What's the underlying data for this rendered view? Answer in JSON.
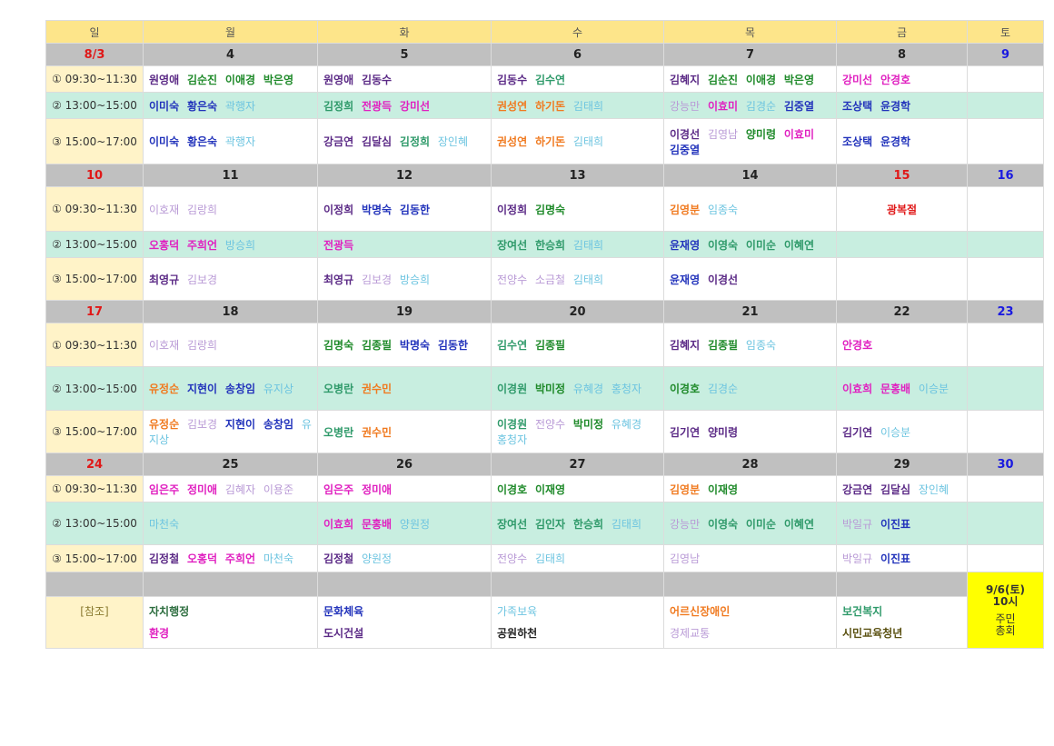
{
  "colors": {
    "purple": "#5b2a86",
    "green": "#1f8a2a",
    "blue": "#2233bb",
    "magenta": "#e020c0",
    "orange": "#f07a20",
    "lightblue": "#6cc4e0",
    "lavender": "#b99ad6",
    "teal": "#2f9a6a",
    "darkgreen": "#2e6e40",
    "black": "#222222",
    "olive": "#5a5010",
    "sunday_red": "#e01818",
    "saturday_blue": "#1a1ae0"
  },
  "weekdays": [
    "일",
    "월",
    "화",
    "수",
    "목",
    "금",
    "토"
  ],
  "slots": [
    "① 09:30~11:30",
    "② 13:00~15:00",
    "③ 15:00~17:00"
  ],
  "weeks": [
    {
      "dates": [
        "8/3",
        "4",
        "5",
        "6",
        "7",
        "8",
        "9"
      ],
      "rows": [
        [
          [
            [
              "원영애",
              "purple"
            ],
            [
              "김순진",
              "green"
            ],
            [
              "이애경",
              "green"
            ],
            [
              "박은영",
              "green"
            ]
          ],
          [
            [
              "원영애",
              "purple"
            ],
            [
              "김동수",
              "purple"
            ]
          ],
          [
            [
              "김동수",
              "purple"
            ],
            [
              "김수연",
              "teal"
            ]
          ],
          [
            [
              "김혜지",
              "purple"
            ],
            [
              "김순진",
              "green"
            ],
            [
              "이애경",
              "green"
            ],
            [
              "박은영",
              "green"
            ]
          ],
          [
            [
              "강미선",
              "magenta"
            ],
            [
              "안경호",
              "magenta"
            ]
          ],
          []
        ],
        [
          [
            [
              "이미숙",
              "blue"
            ],
            [
              "황은숙",
              "blue"
            ],
            [
              "곽행자",
              "lightblue"
            ]
          ],
          [
            [
              "김정희",
              "teal"
            ],
            [
              "전광득",
              "magenta"
            ],
            [
              "강미선",
              "magenta"
            ]
          ],
          [
            [
              "권성연",
              "orange"
            ],
            [
              "하기돈",
              "orange"
            ],
            [
              "김태희",
              "lightblue"
            ]
          ],
          [
            [
              "강능만",
              "lavender"
            ],
            [
              "이효미",
              "magenta"
            ],
            [
              "김경순",
              "lightblue"
            ],
            [
              "김중열",
              "blue"
            ]
          ],
          [
            [
              "조상택",
              "blue"
            ],
            [
              "윤경학",
              "blue"
            ]
          ],
          []
        ],
        [
          [
            [
              "이미숙",
              "blue"
            ],
            [
              "황은숙",
              "blue"
            ],
            [
              "곽행자",
              "lightblue"
            ]
          ],
          [
            [
              "강금연",
              "purple"
            ],
            [
              "김달심",
              "purple"
            ],
            [
              "김정희",
              "teal"
            ],
            [
              "장인혜",
              "lightblue"
            ]
          ],
          [
            [
              "권성연",
              "orange"
            ],
            [
              "하기돈",
              "orange"
            ],
            [
              "김태희",
              "lightblue"
            ]
          ],
          [
            [
              "이경선",
              "purple"
            ],
            [
              "김영남",
              "lavender"
            ],
            [
              "양미령",
              "green"
            ],
            [
              "이효미",
              "magenta"
            ],
            [
              "김중열",
              "blue"
            ]
          ],
          [
            [
              "조상택",
              "blue"
            ],
            [
              "윤경학",
              "blue"
            ]
          ],
          []
        ]
      ]
    },
    {
      "dates": [
        "10",
        "11",
        "12",
        "13",
        "14",
        "15",
        "16"
      ],
      "holiday": "광복절",
      "rows": [
        [
          [
            [
              "이호재",
              "lavender"
            ],
            [
              "김랑희",
              "lavender"
            ]
          ],
          [
            [
              "이정희",
              "purple"
            ],
            [
              "박명숙",
              "blue"
            ],
            [
              "김동한",
              "blue"
            ]
          ],
          [
            [
              "이정희",
              "purple"
            ],
            [
              "김명숙",
              "green"
            ]
          ],
          [
            [
              "김영분",
              "orange"
            ],
            [
              "임종숙",
              "lightblue"
            ]
          ],
          "holiday",
          []
        ],
        [
          [
            [
              "오홍덕",
              "magenta"
            ],
            [
              "주희언",
              "magenta"
            ],
            [
              "방승희",
              "lightblue"
            ]
          ],
          [
            [
              "전광득",
              "magenta"
            ]
          ],
          [
            [
              "장여선",
              "teal"
            ],
            [
              "한승희",
              "teal"
            ],
            [
              "김태희",
              "lightblue"
            ]
          ],
          [
            [
              "윤재영",
              "blue"
            ],
            [
              "이영숙",
              "teal"
            ],
            [
              "이미순",
              "teal"
            ],
            [
              "이혜연",
              "teal"
            ]
          ],
          [],
          []
        ],
        [
          [
            [
              "최영규",
              "purple"
            ],
            [
              "김보경",
              "lavender"
            ]
          ],
          [
            [
              "최영규",
              "purple"
            ],
            [
              "김보경",
              "lavender"
            ],
            [
              "방승희",
              "lightblue"
            ]
          ],
          [
            [
              "전양수",
              "lavender"
            ],
            [
              "소금철",
              "lavender"
            ],
            [
              "김태희",
              "lightblue"
            ]
          ],
          [
            [
              "윤재영",
              "blue"
            ],
            [
              "이경선",
              "purple"
            ]
          ],
          [],
          []
        ]
      ]
    },
    {
      "dates": [
        "17",
        "18",
        "19",
        "20",
        "21",
        "22",
        "23"
      ],
      "rows": [
        [
          [
            [
              "이호재",
              "lavender"
            ],
            [
              "김랑희",
              "lavender"
            ]
          ],
          [
            [
              "김명숙",
              "green"
            ],
            [
              "김종필",
              "green"
            ],
            [
              "박명숙",
              "blue"
            ],
            [
              "김동한",
              "blue"
            ]
          ],
          [
            [
              "김수연",
              "teal"
            ],
            [
              "김종필",
              "green"
            ]
          ],
          [
            [
              "김혜지",
              "purple"
            ],
            [
              "김종필",
              "green"
            ],
            [
              "임종숙",
              "lightblue"
            ]
          ],
          [
            [
              "안경호",
              "magenta"
            ]
          ],
          []
        ],
        [
          [
            [
              "유정순",
              "orange"
            ],
            [
              "지현이",
              "blue"
            ],
            [
              "송창임",
              "blue"
            ],
            [
              "유지상",
              "lightblue"
            ]
          ],
          [
            [
              "오병란",
              "teal"
            ],
            [
              "권수민",
              "orange"
            ]
          ],
          [
            [
              "이경원",
              "teal"
            ],
            [
              "박미정",
              "green"
            ],
            [
              "유혜경",
              "lightblue"
            ],
            [
              "홍청자",
              "lightblue"
            ]
          ],
          [
            [
              "이경호",
              "green"
            ],
            [
              "김경순",
              "lightblue"
            ]
          ],
          [
            [
              "이효희",
              "magenta"
            ],
            [
              "문홍배",
              "magenta"
            ],
            [
              "이승분",
              "lightblue"
            ]
          ],
          []
        ],
        [
          [
            [
              "유정순",
              "orange"
            ],
            [
              "김보경",
              "lavender"
            ],
            [
              "지현이",
              "blue"
            ],
            [
              "송창임",
              "blue"
            ],
            [
              "유지상",
              "lightblue"
            ]
          ],
          [
            [
              "오병란",
              "teal"
            ],
            [
              "권수민",
              "orange"
            ]
          ],
          [
            [
              "이경원",
              "teal"
            ],
            [
              "전양수",
              "lavender"
            ],
            [
              "박미정",
              "green"
            ],
            [
              "유혜경",
              "lightblue"
            ],
            [
              "홍청자",
              "lightblue"
            ]
          ],
          [
            [
              "김기연",
              "purple"
            ],
            [
              "양미령",
              "purple"
            ]
          ],
          [
            [
              "김기연",
              "purple"
            ],
            [
              "이승분",
              "lightblue"
            ]
          ],
          []
        ]
      ]
    },
    {
      "dates": [
        "24",
        "25",
        "26",
        "27",
        "28",
        "29",
        "30"
      ],
      "rows": [
        [
          [
            [
              "임은주",
              "magenta"
            ],
            [
              "정미애",
              "magenta"
            ],
            [
              "김혜자",
              "lavender"
            ],
            [
              "이용준",
              "lavender"
            ]
          ],
          [
            [
              "임은주",
              "magenta"
            ],
            [
              "정미애",
              "magenta"
            ]
          ],
          [
            [
              "이경호",
              "green"
            ],
            [
              "이재영",
              "green"
            ]
          ],
          [
            [
              "김영분",
              "orange"
            ],
            [
              "이재영",
              "green"
            ]
          ],
          [
            [
              "강금연",
              "purple"
            ],
            [
              "김달심",
              "purple"
            ],
            [
              "장인혜",
              "lightblue"
            ]
          ],
          []
        ],
        [
          [
            [
              "마천숙",
              "lightblue"
            ]
          ],
          [
            [
              "이효희",
              "magenta"
            ],
            [
              "문홍배",
              "magenta"
            ],
            [
              "양원정",
              "lightblue"
            ]
          ],
          [
            [
              "장여선",
              "teal"
            ],
            [
              "김인자",
              "teal"
            ],
            [
              "한승희",
              "teal"
            ],
            [
              "김태희",
              "lightblue"
            ]
          ],
          [
            [
              "강능만",
              "lavender"
            ],
            [
              "이영숙",
              "teal"
            ],
            [
              "이미순",
              "teal"
            ],
            [
              "이혜연",
              "teal"
            ]
          ],
          [
            [
              "박일규",
              "lavender"
            ],
            [
              "이진표",
              "blue"
            ]
          ],
          []
        ],
        [
          [
            [
              "김정철",
              "purple"
            ],
            [
              "오홍덕",
              "magenta"
            ],
            [
              "주희언",
              "magenta"
            ],
            [
              "마천숙",
              "lightblue"
            ]
          ],
          [
            [
              "김정철",
              "purple"
            ],
            [
              "양원정",
              "lightblue"
            ]
          ],
          [
            [
              "전양수",
              "lavender"
            ],
            [
              "김태희",
              "lightblue"
            ]
          ],
          [
            [
              "김영남",
              "lavender"
            ]
          ],
          [
            [
              "박일규",
              "lavender"
            ],
            [
              "이진표",
              "blue"
            ]
          ],
          []
        ]
      ]
    }
  ],
  "reference": {
    "label": "[참조]",
    "columns": [
      [
        [
          "자치행정",
          "darkgreen"
        ],
        [
          "환경",
          "magenta"
        ]
      ],
      [
        [
          "문화체육",
          "blue"
        ],
        [
          "도시건설",
          "purple"
        ]
      ],
      [
        [
          "가족보육",
          "lightblue"
        ],
        [
          "공원하천",
          "black"
        ]
      ],
      [
        [
          "어르신장애인",
          "orange"
        ],
        [
          "경제교통",
          "lavender"
        ]
      ],
      [
        [
          "보건복지",
          "teal"
        ],
        [
          "시민교육청년",
          "olive"
        ]
      ]
    ],
    "meeting": {
      "line1": "9/6(토)",
      "line2": "10시",
      "line3": "주민",
      "line4": "총회"
    }
  }
}
